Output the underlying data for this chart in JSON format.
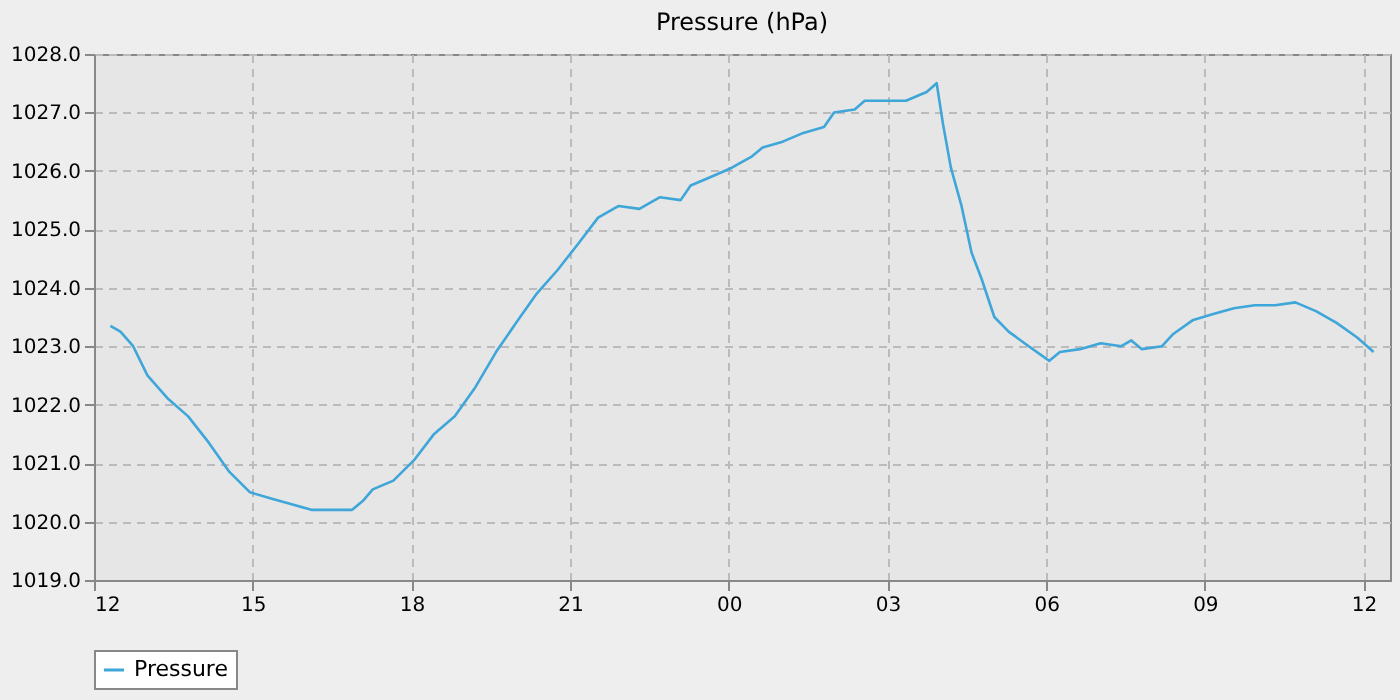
{
  "chart_data": {
    "type": "line",
    "title": "Pressure (hPa)",
    "x": [
      12.31,
      12.5,
      12.74,
      13.01,
      13.4,
      13.78,
      14.17,
      14.56,
      14.95,
      15.33,
      15.72,
      16.11,
      16.5,
      16.88,
      17.08,
      17.27,
      17.66,
      18.05,
      18.43,
      18.82,
      19.21,
      19.6,
      19.98,
      20.37,
      20.76,
      21.15,
      21.53,
      21.92,
      22.31,
      22.7,
      23.09,
      23.28,
      23.67,
      24.05,
      24.44,
      24.64,
      25.02,
      25.41,
      25.8,
      25.99,
      26.38,
      26.57,
      26.96,
      27.35,
      27.74,
      27.93,
      28.05,
      28.2,
      28.4,
      28.59,
      28.78,
      29.02,
      29.29,
      29.67,
      30.06,
      30.26,
      30.64,
      31.03,
      31.42,
      31.61,
      31.81,
      32.19,
      32.39,
      32.78,
      33.16,
      33.55,
      33.94,
      34.33,
      34.71,
      35.1,
      35.49,
      35.88,
      36.19
    ],
    "series": [
      {
        "name": "Pressure",
        "color": "#3ea6d8",
        "values": [
          1023.35,
          1023.25,
          1023.0,
          1022.5,
          1022.1,
          1021.8,
          1021.35,
          1020.85,
          1020.5,
          1020.4,
          1020.3,
          1020.2,
          1020.2,
          1020.2,
          1020.35,
          1020.55,
          1020.7,
          1021.05,
          1021.5,
          1021.8,
          1022.3,
          1022.9,
          1023.4,
          1023.9,
          1024.3,
          1024.75,
          1025.2,
          1025.4,
          1025.35,
          1025.55,
          1025.5,
          1025.75,
          1025.9,
          1026.05,
          1026.25,
          1026.4,
          1026.5,
          1026.65,
          1026.75,
          1027.0,
          1027.05,
          1027.2,
          1027.2,
          1027.2,
          1027.35,
          1027.5,
          1026.8,
          1026.05,
          1025.4,
          1024.6,
          1024.15,
          1023.5,
          1023.25,
          1023.0,
          1022.75,
          1022.9,
          1022.95,
          1023.05,
          1023.0,
          1023.1,
          1022.95,
          1023.0,
          1023.2,
          1023.45,
          1023.55,
          1023.65,
          1023.7,
          1023.7,
          1023.75,
          1023.6,
          1023.4,
          1023.15,
          1022.9
        ]
      }
    ],
    "xlim": [
      12,
      36.5
    ],
    "xticks": [
      {
        "value": 12,
        "label": "12"
      },
      {
        "value": 15,
        "label": "15"
      },
      {
        "value": 18,
        "label": "18"
      },
      {
        "value": 21,
        "label": "21"
      },
      {
        "value": 24,
        "label": "00"
      },
      {
        "value": 27,
        "label": "03"
      },
      {
        "value": 30,
        "label": "06"
      },
      {
        "value": 33,
        "label": "09"
      },
      {
        "value": 36,
        "label": "12"
      }
    ],
    "ylim": [
      1019,
      1028
    ],
    "yticks": [
      {
        "value": 1019,
        "label": "1019.0"
      },
      {
        "value": 1020,
        "label": "1020.0"
      },
      {
        "value": 1021,
        "label": "1021.0"
      },
      {
        "value": 1022,
        "label": "1022.0"
      },
      {
        "value": 1023,
        "label": "1023.0"
      },
      {
        "value": 1024,
        "label": "1024.0"
      },
      {
        "value": 1025,
        "label": "1025.0"
      },
      {
        "value": 1026,
        "label": "1026.0"
      },
      {
        "value": 1027,
        "label": "1027.0"
      },
      {
        "value": 1028,
        "label": "1028.0"
      }
    ],
    "grid": true,
    "legend": "bottom",
    "marker": "none",
    "line_style": "solid"
  }
}
